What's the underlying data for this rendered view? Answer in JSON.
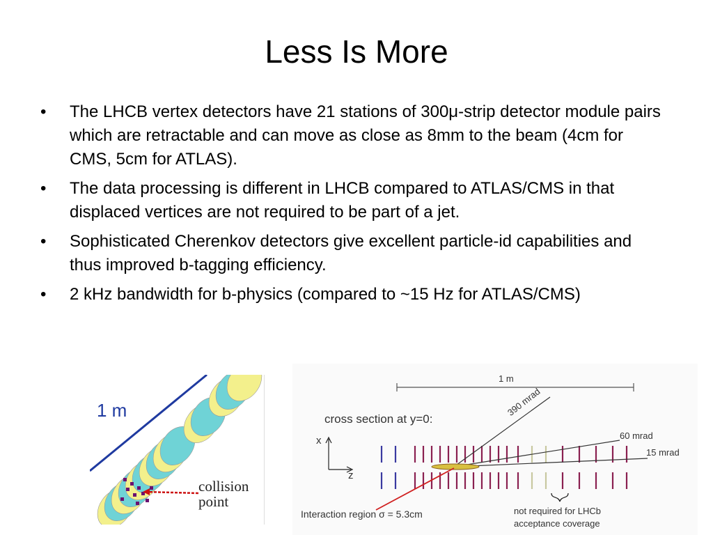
{
  "slide": {
    "title": "Less Is More",
    "bullet_symbol": "•",
    "bullets": [
      {
        "text": "The LHCB vertex detectors have 21 stations of 300μ-strip detector module pairs which are retractable and can move as close as 8mm to the beam (4cm for CMS, 5cm for ATLAS)."
      },
      {
        "text": "The data processing is different in LHCB compared to ATLAS/CMS in that displaced vertices are not required to be part of a jet."
      },
      {
        "text": "Sophisticated Cherenkov detectors give excellent particle-id capabilities and thus improved b-tagging efficiency."
      },
      {
        "text": "2 kHz bandwidth for b-physics (compared to ~15 Hz for ATLAS/CMS)"
      }
    ]
  },
  "left_figure": {
    "scale_label": "1 m",
    "collision_label_line1": "collision",
    "collision_label_line2": "point",
    "colors": {
      "disk_yellow": "#f3f08c",
      "disk_cyan": "#6fd3d6",
      "line_blue": "#1f3aa0",
      "marker_red": "#cc1111",
      "dots_purple": "#6a1070"
    }
  },
  "right_figure": {
    "scale_label": "1 m",
    "cross_section_label": "cross section at y=0:",
    "axis_x": "x",
    "axis_z": "z",
    "angle_390": "390 mrad",
    "angle_60": "60 mrad",
    "angle_15": "15 mrad",
    "interaction_label": "Interaction region σ = 5.3cm",
    "not_required_line1": "not required for LHCb",
    "not_required_line2": "acceptance coverage",
    "colors": {
      "strip_purple": "#8a2050",
      "strip_blue": "#3a3aa0",
      "strip_beige": "#c8c8a0",
      "beam_red": "#d02020",
      "region_yellow": "#d8c040"
    }
  }
}
